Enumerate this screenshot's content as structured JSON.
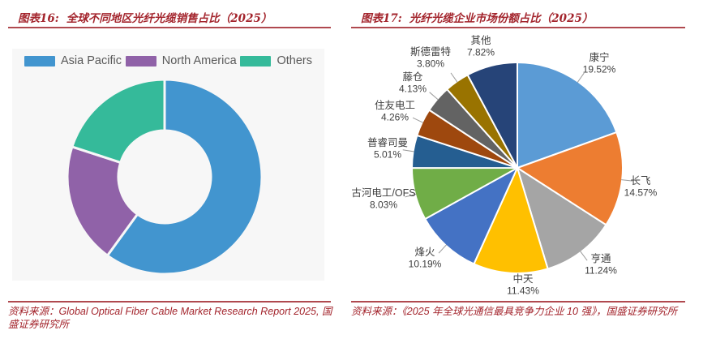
{
  "figures": {
    "left": {
      "label": "图表16:",
      "title": "全球不同地区光纤光缆销售占比（2025）",
      "source": "资料来源：Global Optical Fiber Cable Market Research Report 2025, 国盛证券研究所"
    },
    "right": {
      "label": "图表17:",
      "title": "光纤光缆企业市场份额占比（2025）",
      "source": "资料来源：《2025 年全球光通信最具竞争力企业 10 强》，国盛证券研究所"
    }
  },
  "accent_colors": {
    "heading_red": "#A3242C",
    "rule_red": "#B0494F",
    "panel_gray": "#F7F7F7"
  },
  "chart_data": [
    {
      "type": "pie",
      "subtype": "donut",
      "title": "全球不同地区光纤光缆销售占比（2025）",
      "categories": [
        "Asia Pacific",
        "North America",
        "Others"
      ],
      "values": [
        60,
        20,
        20
      ],
      "unit": "%",
      "values_estimated_from_arcs": true,
      "colors": [
        "#4295CF",
        "#9062A8",
        "#35BA9A"
      ],
      "legend_position": "top",
      "start_angle_deg": 0,
      "direction": "clockwise",
      "inner_radius_ratio": 0.48,
      "data_labels": false
    },
    {
      "type": "pie",
      "title": "光纤光缆企业市场份额占比（2025）",
      "categories": [
        "康宁",
        "长飞",
        "亨通",
        "中天",
        "烽火",
        "古河电工/OFS",
        "普睿司曼",
        "住友电工",
        "藤仓",
        "斯德雷特",
        "其他"
      ],
      "values": [
        19.52,
        14.57,
        11.24,
        11.43,
        10.19,
        8.03,
        5.01,
        4.26,
        4.13,
        3.8,
        7.82
      ],
      "unit": "%",
      "colors": [
        "#5B9BD5",
        "#ED7D31",
        "#A5A5A5",
        "#FFC000",
        "#4472C4",
        "#70AD47",
        "#255E91",
        "#9E480E",
        "#636363",
        "#997300",
        "#264478"
      ],
      "legend_position": "none",
      "start_angle_deg": 0,
      "direction": "clockwise",
      "data_labels": "name_and_percent"
    }
  ]
}
